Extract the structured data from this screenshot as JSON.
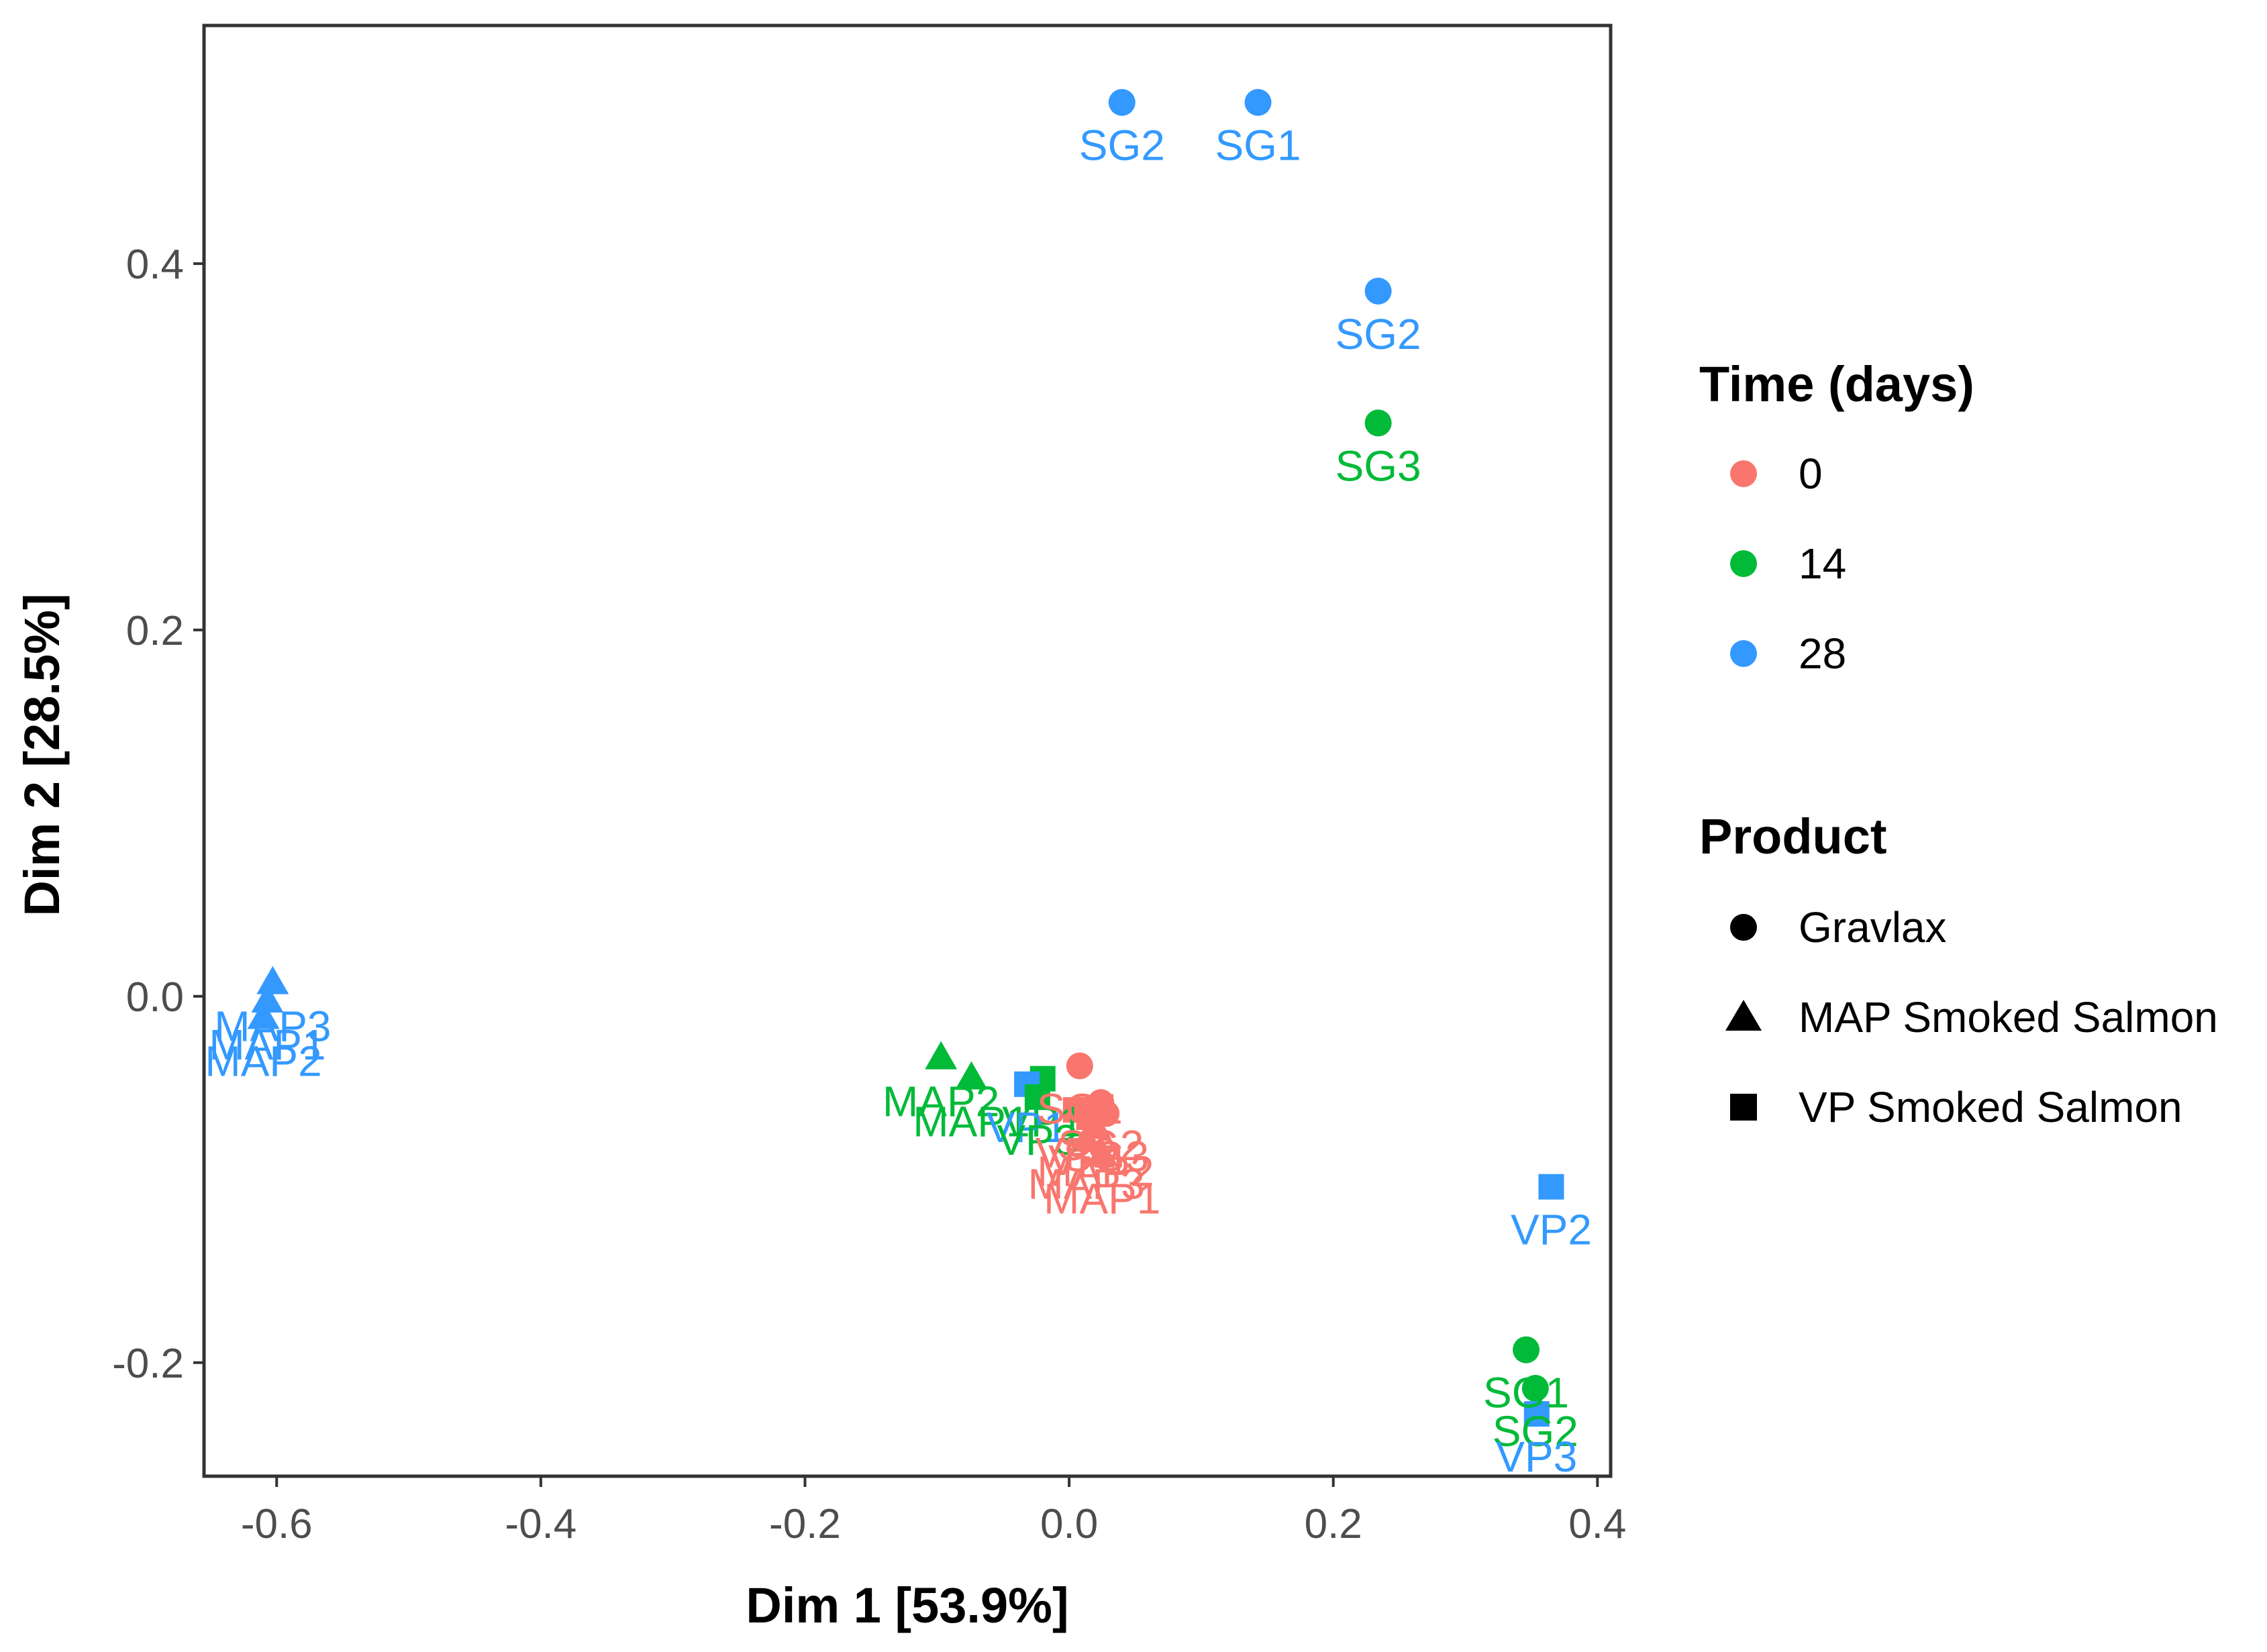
{
  "chart_data": {
    "type": "scatter",
    "xlabel": "Dim 1   [53.9%]",
    "ylabel": "Dim 2   [28.5%]",
    "xlim": [
      -0.655,
      0.41
    ],
    "ylim": [
      -0.262,
      0.53
    ],
    "xticks": [
      -0.6,
      -0.4,
      -0.2,
      0.0,
      0.2,
      0.4
    ],
    "xtick_labels": [
      "-0.6",
      "-0.4",
      "-0.2",
      "0.0",
      "0.2",
      "0.4"
    ],
    "yticks": [
      -0.2,
      0.0,
      0.2,
      0.4
    ],
    "ytick_labels": [
      "-0.2",
      "0.0",
      "0.2",
      "0.4"
    ],
    "grid": false,
    "legend_position": "right",
    "colors": {
      "0": "#F8766D",
      "14": "#00BA38",
      "28": "#3399FF"
    },
    "legends": [
      {
        "title": "Time (days)",
        "type": "color",
        "items": [
          {
            "label": "0",
            "key": "0"
          },
          {
            "label": "14",
            "key": "14"
          },
          {
            "label": "28",
            "key": "28"
          }
        ]
      },
      {
        "title": "Product",
        "type": "shape",
        "items": [
          {
            "label": "Gravlax",
            "shape": "circle"
          },
          {
            "label": "MAP Smoked Salmon",
            "shape": "triangle"
          },
          {
            "label": "VP Smoked Salmon",
            "shape": "square"
          }
        ]
      }
    ],
    "points": [
      {
        "x": 0.04,
        "y": 0.488,
        "time": "28",
        "shape": "circle",
        "label": "SG2"
      },
      {
        "x": 0.143,
        "y": 0.488,
        "time": "28",
        "shape": "circle",
        "label": "SG1"
      },
      {
        "x": 0.234,
        "y": 0.385,
        "time": "28",
        "shape": "circle",
        "label": "SG2"
      },
      {
        "x": 0.234,
        "y": 0.313,
        "time": "14",
        "shape": "circle",
        "label": "SG3"
      },
      {
        "x": -0.603,
        "y": 0.007,
        "time": "28",
        "shape": "triangle",
        "label": "MAP3"
      },
      {
        "x": -0.607,
        "y": -0.003,
        "time": "28",
        "shape": "triangle",
        "label": "MAP1"
      },
      {
        "x": -0.61,
        "y": -0.012,
        "time": "28",
        "shape": "triangle",
        "label": "MAP2"
      },
      {
        "x": -0.097,
        "y": -0.034,
        "time": "14",
        "shape": "triangle",
        "label": "MAP2"
      },
      {
        "x": -0.074,
        "y": -0.045,
        "time": "14",
        "shape": "triangle",
        "label": "MAP1"
      },
      {
        "x": -0.02,
        "y": -0.045,
        "time": "14",
        "shape": "square",
        "label": "VP1"
      },
      {
        "x": -0.032,
        "y": -0.048,
        "time": "28",
        "shape": "square",
        "label": "VP1"
      },
      {
        "x": -0.024,
        "y": -0.055,
        "time": "14",
        "shape": "square",
        "label": "VP3"
      },
      {
        "x": 0.008,
        "y": -0.038,
        "time": "0",
        "shape": "circle",
        "label": "SG1"
      },
      {
        "x": 0.024,
        "y": -0.058,
        "time": "0",
        "shape": "circle",
        "label": "SG2"
      },
      {
        "x": 0.005,
        "y": -0.062,
        "time": "0",
        "shape": "square",
        "label": "VP2"
      },
      {
        "x": 0.015,
        "y": -0.066,
        "time": "0",
        "shape": "square",
        "label": "VP1"
      },
      {
        "x": 0.028,
        "y": -0.064,
        "time": "0",
        "shape": "circle",
        "label": "SG3"
      },
      {
        "x": 0.02,
        "y": -0.072,
        "time": "0",
        "shape": "triangle",
        "label": "MAP2"
      },
      {
        "x": 0.013,
        "y": -0.079,
        "time": "0",
        "shape": "triangle",
        "label": "MAP3"
      },
      {
        "x": 0.025,
        "y": -0.087,
        "time": "0",
        "shape": "triangle",
        "label": "MAP1"
      },
      {
        "x": 0.365,
        "y": -0.104,
        "time": "28",
        "shape": "square",
        "label": "VP2"
      },
      {
        "x": 0.346,
        "y": -0.193,
        "time": "14",
        "shape": "circle",
        "label": "SG1"
      },
      {
        "x": 0.353,
        "y": -0.214,
        "time": "14",
        "shape": "circle",
        "label": "SG2"
      },
      {
        "x": 0.354,
        "y": -0.228,
        "time": "28",
        "shape": "square",
        "label": "VP3"
      }
    ]
  }
}
